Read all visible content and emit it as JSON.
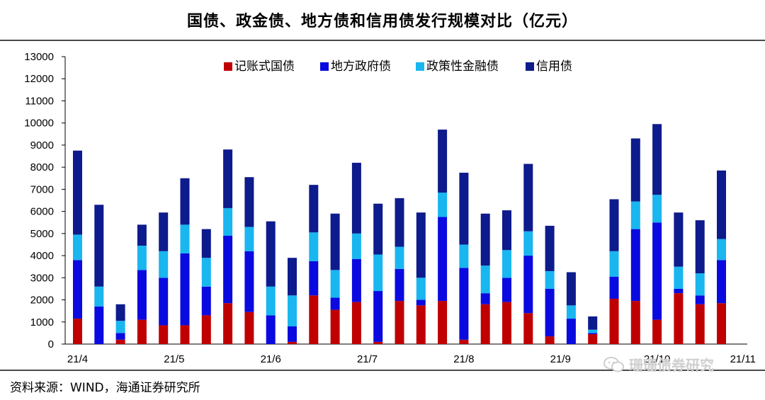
{
  "header": {
    "title": "国债、政金债、地方债和信用债发行规模对比（亿元）"
  },
  "source": "资料来源：WIND，海通证券研究所",
  "watermark": {
    "text": "珊珊债券研究",
    "icon": "wechat-icon"
  },
  "colors": {
    "treasury": "#c00000",
    "local": "#0a0ae0",
    "policy": "#19b6f0",
    "credit": "#0d1b8c"
  },
  "chart_data": {
    "type": "bar",
    "stacked": true,
    "title": "国债、政金债、地方债和信用债发行规模对比（亿元）",
    "ylim": [
      0,
      13000
    ],
    "yticks": [
      0,
      1000,
      2000,
      3000,
      4000,
      5000,
      6000,
      7000,
      8000,
      9000,
      10000,
      11000,
      12000,
      13000
    ],
    "x_tick_labels": [
      {
        "label": "21/4",
        "index": 0
      },
      {
        "label": "21/5",
        "index": 4.5
      },
      {
        "label": "21/6",
        "index": 9
      },
      {
        "label": "21/7",
        "index": 13.5
      },
      {
        "label": "21/8",
        "index": 18
      },
      {
        "label": "21/9",
        "index": 22.5
      },
      {
        "label": "21/10",
        "index": 27
      },
      {
        "label": "21/11",
        "index": 31
      }
    ],
    "legend_position": "top",
    "series": [
      {
        "name": "记账式国债",
        "color_key": "treasury",
        "values": [
          1150,
          0,
          200,
          1100,
          850,
          850,
          1300,
          1850,
          1450,
          0,
          100,
          2200,
          1550,
          1900,
          100,
          1950,
          1750,
          1950,
          200,
          1800,
          1900,
          1400,
          350,
          0,
          450,
          2050,
          1950,
          1100,
          2300,
          1800,
          1850
        ]
      },
      {
        "name": "地方政府债",
        "color_key": "local",
        "values": [
          2650,
          1700,
          300,
          2250,
          2150,
          3250,
          1300,
          3050,
          2750,
          1300,
          700,
          1550,
          550,
          1950,
          2300,
          1450,
          250,
          3800,
          3250,
          500,
          1100,
          2600,
          2150,
          1150,
          50,
          1000,
          3250,
          4400,
          200,
          400,
          1950
        ]
      },
      {
        "name": "政策性金融债",
        "color_key": "policy",
        "values": [
          1150,
          900,
          550,
          1100,
          1200,
          1300,
          1300,
          1250,
          1100,
          1300,
          1400,
          1300,
          1250,
          1150,
          1650,
          1000,
          1000,
          1100,
          1050,
          1250,
          1250,
          1100,
          800,
          600,
          150,
          1150,
          1250,
          1250,
          1000,
          1000,
          950
        ]
      },
      {
        "name": "信用债",
        "color_key": "credit",
        "values": [
          3800,
          3700,
          750,
          950,
          1750,
          2100,
          1300,
          2650,
          2250,
          2950,
          1700,
          2150,
          2550,
          3200,
          2300,
          2200,
          2950,
          2850,
          3250,
          2350,
          1800,
          3050,
          2050,
          1500,
          600,
          2350,
          2850,
          3200,
          2450,
          2400,
          3100
        ]
      }
    ]
  }
}
